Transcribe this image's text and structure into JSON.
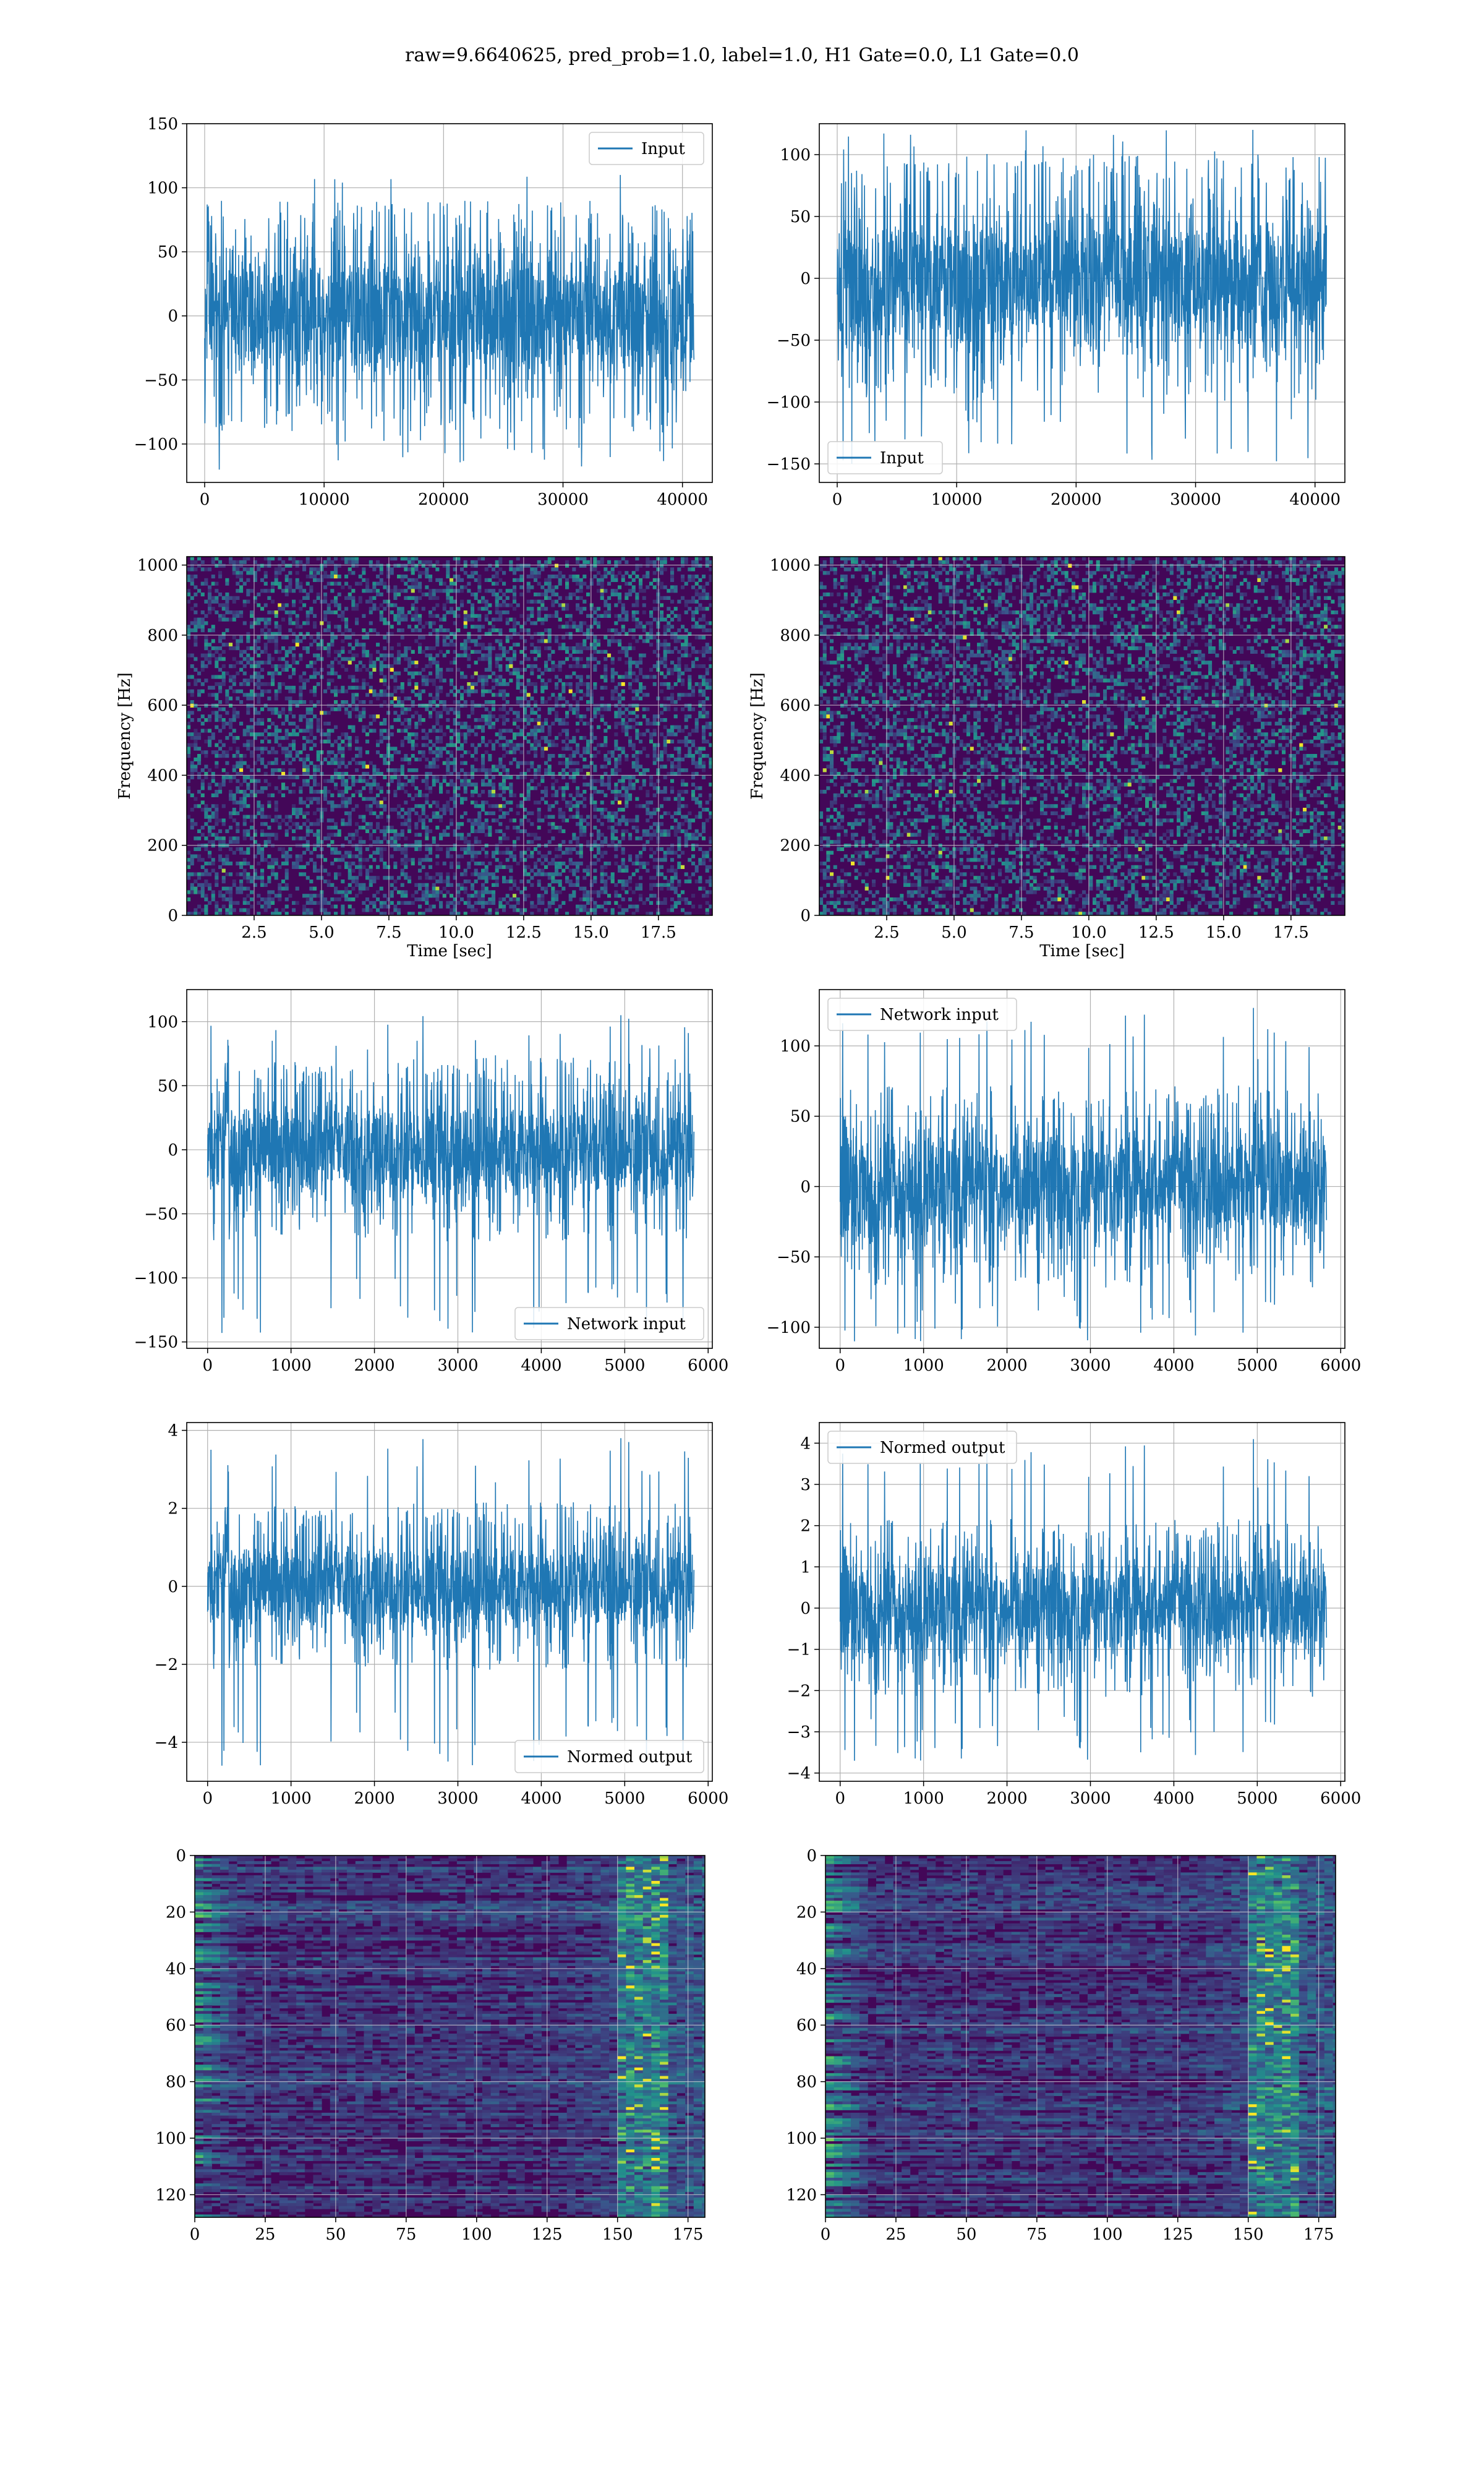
{
  "figure": {
    "title": "raw=9.6640625, pred_prob=1.0, label=1.0, H1 Gate=0.0, L1 Gate=0.0"
  },
  "colors": {
    "line": "#1f77b4",
    "grid": "#b0b0b0",
    "viridis_low": "#440154",
    "viridis_high": "#fde725"
  },
  "chart_data": [
    {
      "id": "r1c1",
      "type": "line",
      "legend": [
        "Input"
      ],
      "legend_loc": "upper right",
      "xlim": [
        -1500,
        42500
      ],
      "ylim": [
        -130,
        150
      ],
      "xticks": [
        0,
        10000,
        20000,
        30000,
        40000
      ],
      "xtick_labels": [
        "0",
        "10000",
        "20000",
        "30000",
        "40000"
      ],
      "yticks": [
        -100,
        -50,
        0,
        50,
        100,
        150
      ],
      "ytick_labels": [
        "−100",
        "−50",
        "0",
        "50",
        "100",
        "150"
      ],
      "signal": {
        "x_start": 0,
        "x_end": 40960,
        "core": 50,
        "peak_pos": 110,
        "peak_neg": -120,
        "seed": 11
      }
    },
    {
      "id": "r1c2",
      "type": "line",
      "legend": [
        "Input"
      ],
      "legend_loc": "lower left",
      "xlim": [
        -1500,
        42500
      ],
      "ylim": [
        -165,
        125
      ],
      "xticks": [
        0,
        10000,
        20000,
        30000,
        40000
      ],
      "xtick_labels": [
        "0",
        "10000",
        "20000",
        "30000",
        "40000"
      ],
      "yticks": [
        -150,
        -100,
        -50,
        0,
        50,
        100
      ],
      "ytick_labels": [
        "−150",
        "−100",
        "−50",
        "0",
        "50",
        "100"
      ],
      "signal": {
        "x_start": 0,
        "x_end": 40960,
        "core": 55,
        "peak_pos": 120,
        "peak_neg": -150,
        "seed": 23
      }
    },
    {
      "id": "r2c1",
      "type": "heatmap",
      "xlabel": "Time [sec]",
      "ylabel": "Frequency [Hz]",
      "xlim": [
        0,
        19.5
      ],
      "ylim": [
        0,
        1024
      ],
      "xticks": [
        2.5,
        5.0,
        7.5,
        10.0,
        12.5,
        15.0,
        17.5
      ],
      "xtick_labels": [
        "2.5",
        "5.0",
        "7.5",
        "10.0",
        "12.5",
        "15.0",
        "17.5"
      ],
      "yticks": [
        0,
        200,
        400,
        600,
        800,
        1000
      ],
      "ytick_labels": [
        "0",
        "200",
        "400",
        "600",
        "800",
        "1000"
      ],
      "seed": 31
    },
    {
      "id": "r2c2",
      "type": "heatmap",
      "xlabel": "Time [sec]",
      "ylabel": "Frequency [Hz]",
      "xlim": [
        0,
        19.5
      ],
      "ylim": [
        0,
        1024
      ],
      "xticks": [
        2.5,
        5.0,
        7.5,
        10.0,
        12.5,
        15.0,
        17.5
      ],
      "xtick_labels": [
        "2.5",
        "5.0",
        "7.5",
        "10.0",
        "12.5",
        "15.0",
        "17.5"
      ],
      "yticks": [
        0,
        200,
        400,
        600,
        800,
        1000
      ],
      "ytick_labels": [
        "0",
        "200",
        "400",
        "600",
        "800",
        "1000"
      ],
      "seed": 47
    },
    {
      "id": "r3c1",
      "type": "line",
      "legend": [
        "Network input"
      ],
      "legend_loc": "lower right",
      "xlim": [
        -250,
        6050
      ],
      "ylim": [
        -155,
        125
      ],
      "xticks": [
        0,
        1000,
        2000,
        3000,
        4000,
        5000,
        6000
      ],
      "xtick_labels": [
        "0",
        "1000",
        "2000",
        "3000",
        "4000",
        "5000",
        "6000"
      ],
      "yticks": [
        -150,
        -100,
        -50,
        0,
        50,
        100
      ],
      "ytick_labels": [
        "−150",
        "−100",
        "−50",
        "0",
        "50",
        "100"
      ],
      "signal": {
        "x_start": 0,
        "x_end": 5830,
        "core": 40,
        "peak_pos": 105,
        "peak_neg": -143,
        "seed": 53
      }
    },
    {
      "id": "r3c2",
      "type": "line",
      "legend": [
        "Network input"
      ],
      "legend_loc": "upper left",
      "xlim": [
        -250,
        6050
      ],
      "ylim": [
        -115,
        140
      ],
      "xticks": [
        0,
        1000,
        2000,
        3000,
        4000,
        5000,
        6000
      ],
      "xtick_labels": [
        "0",
        "1000",
        "2000",
        "3000",
        "4000",
        "5000",
        "6000"
      ],
      "yticks": [
        -100,
        -50,
        0,
        50,
        100
      ],
      "ytick_labels": [
        "−100",
        "−50",
        "0",
        "50",
        "100"
      ],
      "signal": {
        "x_start": 0,
        "x_end": 5830,
        "core": 40,
        "peak_pos": 127,
        "peak_neg": -110,
        "seed": 67
      }
    },
    {
      "id": "r4c1",
      "type": "line",
      "legend": [
        "Normed output"
      ],
      "legend_loc": "lower right",
      "xlim": [
        -250,
        6050
      ],
      "ylim": [
        -5.0,
        4.2
      ],
      "xticks": [
        0,
        1000,
        2000,
        3000,
        4000,
        5000,
        6000
      ],
      "xtick_labels": [
        "0",
        "1000",
        "2000",
        "3000",
        "4000",
        "5000",
        "6000"
      ],
      "yticks": [
        -4,
        -2,
        0,
        2,
        4
      ],
      "ytick_labels": [
        "−4",
        "−2",
        "0",
        "2",
        "4"
      ],
      "signal": {
        "x_start": 0,
        "x_end": 5830,
        "core": 1.2,
        "peak_pos": 3.8,
        "peak_neg": -4.6,
        "seed": 53
      }
    },
    {
      "id": "r4c2",
      "type": "line",
      "legend": [
        "Normed output"
      ],
      "legend_loc": "upper left",
      "xlim": [
        -250,
        6050
      ],
      "ylim": [
        -4.2,
        4.5
      ],
      "xticks": [
        0,
        1000,
        2000,
        3000,
        4000,
        5000,
        6000
      ],
      "xtick_labels": [
        "0",
        "1000",
        "2000",
        "3000",
        "4000",
        "5000",
        "6000"
      ],
      "yticks": [
        -4,
        -3,
        -2,
        -1,
        0,
        1,
        2,
        3,
        4
      ],
      "ytick_labels": [
        "−4",
        "−3",
        "−2",
        "−1",
        "0",
        "1",
        "2",
        "3",
        "4"
      ],
      "signal": {
        "x_start": 0,
        "x_end": 5830,
        "core": 1.2,
        "peak_pos": 4.1,
        "peak_neg": -3.7,
        "seed": 67
      }
    },
    {
      "id": "r5c1",
      "type": "heatmap",
      "origin": "upper",
      "xlim": [
        0,
        181
      ],
      "ylim": [
        128,
        0
      ],
      "xticks": [
        0,
        25,
        50,
        75,
        100,
        125,
        150,
        175
      ],
      "xtick_labels": [
        "0",
        "25",
        "50",
        "75",
        "100",
        "125",
        "150",
        "175"
      ],
      "yticks": [
        0,
        20,
        40,
        60,
        80,
        100,
        120
      ],
      "ytick_labels": [
        "0",
        "20",
        "40",
        "60",
        "80",
        "100",
        "120"
      ],
      "seed": 71
    },
    {
      "id": "r5c2",
      "type": "heatmap",
      "origin": "upper",
      "xlim": [
        0,
        181
      ],
      "ylim": [
        128,
        0
      ],
      "xticks": [
        0,
        25,
        50,
        75,
        100,
        125,
        150,
        175
      ],
      "xtick_labels": [
        "0",
        "25",
        "50",
        "75",
        "100",
        "125",
        "150",
        "175"
      ],
      "yticks": [
        0,
        20,
        40,
        60,
        80,
        100,
        120
      ],
      "ytick_labels": [
        "0",
        "20",
        "40",
        "60",
        "80",
        "100",
        "120"
      ],
      "seed": 89
    }
  ]
}
